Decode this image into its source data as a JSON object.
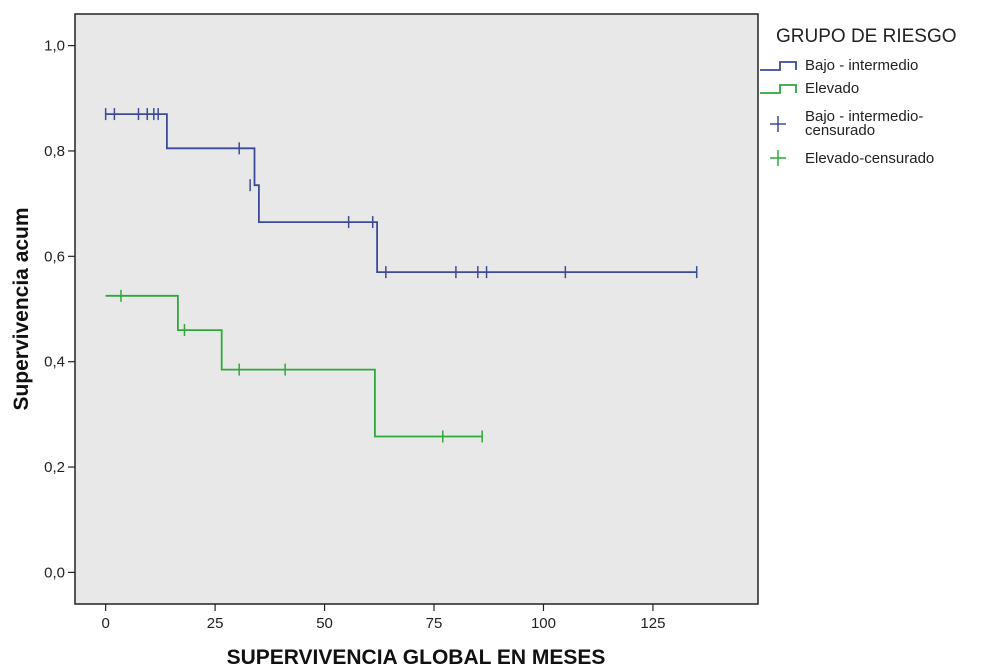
{
  "chart_data": {
    "type": "line",
    "subtype": "kaplan-meier-step",
    "xlabel": "SUPERVIVENCIA GLOBAL EN MESES",
    "ylabel": "Supervivencia acum",
    "xlim": [
      -7,
      149
    ],
    "ylim": [
      -0.06,
      1.06
    ],
    "xticks": [
      0,
      25,
      50,
      75,
      100,
      125
    ],
    "xtick_labels": [
      "0",
      "25",
      "50",
      "75",
      "100",
      "125"
    ],
    "yticks": [
      0.0,
      0.2,
      0.4,
      0.6,
      0.8,
      1.0
    ],
    "ytick_labels": [
      "0,0",
      "0,2",
      "0,4",
      "0,6",
      "0,8",
      "1,0"
    ],
    "grid": false,
    "plot_background": "#e8e8e8",
    "legend": {
      "title": "GRUPO DE RIESGO",
      "position": "right",
      "entries": [
        {
          "label": "Bajo - intermedio",
          "kind": "line",
          "color": "#3d4a99"
        },
        {
          "label": "Elevado",
          "kind": "line",
          "color": "#2fa83a"
        },
        {
          "label_lines": [
            "Bajo - intermedio-",
            "censurado"
          ],
          "kind": "censor",
          "color": "#3d4a99"
        },
        {
          "label": "Elevado-censurado",
          "kind": "censor",
          "color": "#2fa83a"
        }
      ]
    },
    "series": [
      {
        "name": "Bajo - intermedio",
        "color": "#3d4a99",
        "steps": [
          [
            0,
            0.87
          ],
          [
            14,
            0.87
          ],
          [
            14,
            0.805
          ],
          [
            34,
            0.805
          ],
          [
            34,
            0.735
          ],
          [
            35,
            0.735
          ],
          [
            35,
            0.665
          ],
          [
            62,
            0.665
          ],
          [
            62,
            0.57
          ],
          [
            135,
            0.57
          ]
        ],
        "censored": [
          [
            0,
            0.87
          ],
          [
            2,
            0.87
          ],
          [
            7.5,
            0.87
          ],
          [
            9.5,
            0.87
          ],
          [
            11,
            0.87
          ],
          [
            12,
            0.87
          ],
          [
            30.5,
            0.805
          ],
          [
            33,
            0.735
          ],
          [
            55.5,
            0.665
          ],
          [
            61,
            0.665
          ],
          [
            64,
            0.57
          ],
          [
            80,
            0.57
          ],
          [
            85,
            0.57
          ],
          [
            87,
            0.57
          ],
          [
            105,
            0.57
          ],
          [
            135,
            0.57
          ]
        ]
      },
      {
        "name": "Elevado",
        "color": "#2fa83a",
        "steps": [
          [
            0,
            0.525
          ],
          [
            16.5,
            0.525
          ],
          [
            16.5,
            0.46
          ],
          [
            26.5,
            0.46
          ],
          [
            26.5,
            0.385
          ],
          [
            61.5,
            0.385
          ],
          [
            61.5,
            0.258
          ],
          [
            86,
            0.258
          ]
        ],
        "censored": [
          [
            3.5,
            0.525
          ],
          [
            18,
            0.46
          ],
          [
            30.5,
            0.385
          ],
          [
            41,
            0.385
          ],
          [
            77,
            0.258
          ],
          [
            86,
            0.258
          ]
        ]
      }
    ]
  }
}
